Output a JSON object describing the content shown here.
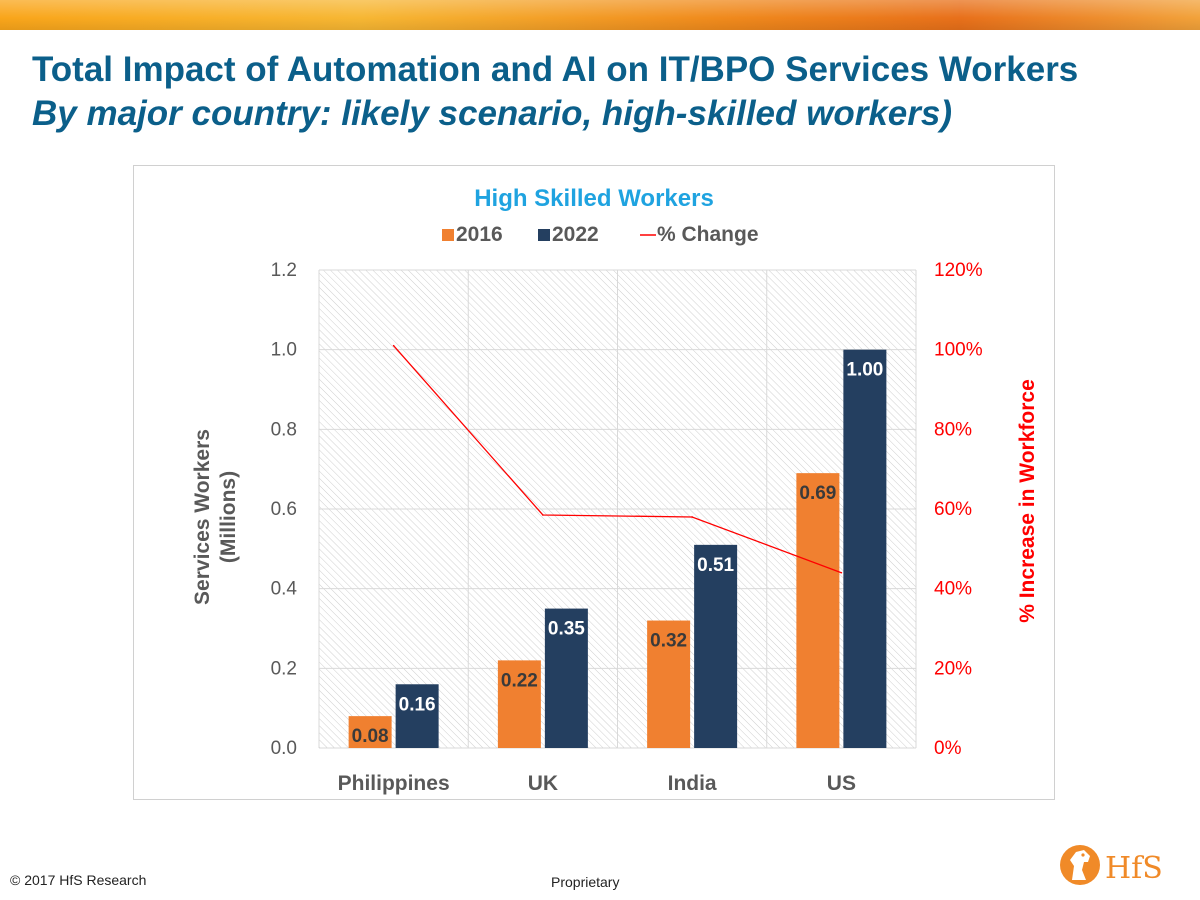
{
  "slide": {
    "title": "Total Impact of Automation and AI on IT/BPO Services Workers",
    "subtitle": "By major country: likely scenario, high-skilled workers)",
    "copyright": "© 2017 HfS Research",
    "proprietary": "Proprietary",
    "logo_text": "HfS",
    "colors": {
      "title": "#0b5f8a",
      "banner": "#f39c1f"
    }
  },
  "chart_data": {
    "type": "bar",
    "title": "High Skilled Workers",
    "categories": [
      "Philippines",
      "UK",
      "India",
      "US"
    ],
    "series": [
      {
        "name": "2016",
        "type": "bar",
        "axis": "left",
        "color": "#f08030",
        "values": [
          0.08,
          0.22,
          0.32,
          0.69
        ],
        "labels": [
          "0.08",
          "0.22",
          "0.32",
          "0.69"
        ]
      },
      {
        "name": "2022",
        "type": "bar",
        "axis": "left",
        "color": "#243f60",
        "values": [
          0.16,
          0.35,
          0.51,
          1.0
        ],
        "labels": [
          "0.16",
          "0.35",
          "0.51",
          "1.00"
        ]
      },
      {
        "name": "% Change",
        "type": "line",
        "axis": "right",
        "color": "#ff0000",
        "values": [
          101,
          58.5,
          58,
          44
        ]
      }
    ],
    "ylabel": "Services Workers (Millions)",
    "ylabel_lines": [
      "Services Workers",
      "(Millions)"
    ],
    "y2label": "% Increase in Workforce",
    "ylim": [
      0,
      1.2
    ],
    "yticks": [
      "0.0",
      "0.2",
      "0.4",
      "0.6",
      "0.8",
      "1.0",
      "1.2"
    ],
    "y2lim": [
      0,
      120
    ],
    "y2ticks": [
      "0%",
      "20%",
      "40%",
      "60%",
      "80%",
      "100%",
      "120%"
    ],
    "legend_position": "top",
    "grid": true,
    "colors": {
      "title": "#1fa3e0",
      "axis_text": "#595959",
      "y2_text": "#ff0000",
      "grid": "#d9d9d9"
    }
  }
}
